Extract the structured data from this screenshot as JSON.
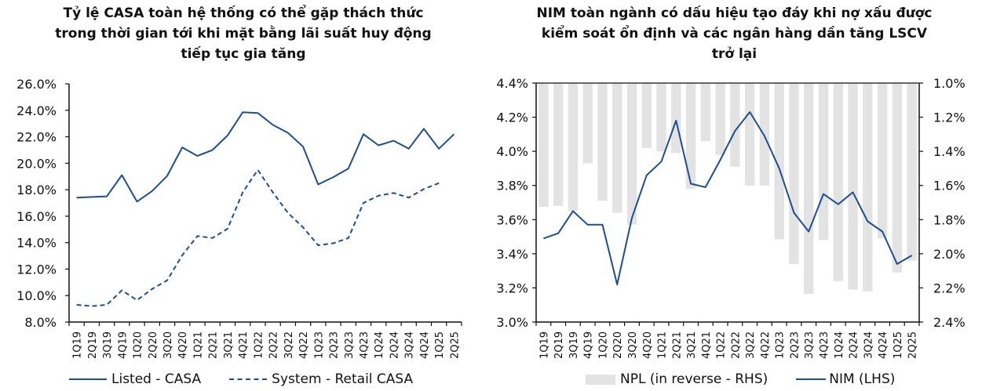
{
  "chart_data": [
    {
      "type": "line",
      "title": "Tỷ lệ CASA toàn hệ thống có thể gặp thách thức trong thời gian tới khi mặt bằng lãi suất huy động tiếp tục gia tăng",
      "title_lines": [
        "Tỷ lệ CASA toàn hệ thống có thể gặp thách thức",
        "trong thời gian tới khi mặt bằng lãi suất huy động",
        "tiếp tục gia tăng"
      ],
      "xlabel": "",
      "ylabel": "",
      "categories": [
        "1Q19",
        "2Q19",
        "3Q19",
        "4Q19",
        "1Q20",
        "2Q20",
        "3Q20",
        "4Q20",
        "1Q21",
        "2Q21",
        "3Q21",
        "4Q21",
        "1Q22",
        "2Q22",
        "3Q22",
        "4Q22",
        "1Q23",
        "2Q23",
        "3Q23",
        "4Q23",
        "1Q24",
        "2Q24",
        "3Q24",
        "4Q24",
        "1Q25",
        "2Q25"
      ],
      "ylim": [
        8.0,
        26.0
      ],
      "yticks": [
        "8.0%",
        "10.0%",
        "12.0%",
        "14.0%",
        "16.0%",
        "18.0%",
        "20.0%",
        "22.0%",
        "24.0%",
        "26.0%"
      ],
      "ytick_values": [
        8,
        10,
        12,
        14,
        16,
        18,
        20,
        22,
        24,
        26
      ],
      "grid": false,
      "legend_position": "bottom",
      "series": [
        {
          "name": "Listed - CASA",
          "style": "solid",
          "color": "#1f4e8c",
          "values": [
            17.4,
            17.45,
            17.5,
            19.1,
            17.1,
            17.9,
            19.05,
            21.2,
            20.55,
            21.0,
            22.1,
            23.85,
            23.8,
            22.9,
            22.3,
            21.25,
            18.4,
            18.95,
            19.6,
            22.2,
            21.35,
            21.7,
            21.1,
            22.6,
            21.1,
            22.2
          ]
        },
        {
          "name": "System - Retail CASA",
          "style": "dashed",
          "color": "#1f4e8c",
          "values": [
            9.3,
            9.2,
            9.3,
            10.4,
            9.65,
            10.5,
            11.15,
            13.05,
            14.5,
            14.35,
            15.05,
            17.8,
            19.5,
            17.8,
            16.25,
            15.15,
            13.8,
            13.95,
            14.35,
            17.0,
            17.55,
            17.75,
            17.4,
            18.05,
            18.5,
            null
          ]
        }
      ]
    },
    {
      "type": "bar",
      "title": "NIM toàn ngành có dấu hiệu tạo đáy khi nợ xấu được kiểm soát ổn định và các ngân hàng dần tăng LSCV trở lại",
      "title_lines": [
        "NIM toàn ngành có dấu hiệu tạo đáy khi nợ xấu được",
        "kiểm soát ổn định và các ngân hàng dần tăng LSCV",
        "trở lại"
      ],
      "xlabel": "",
      "categories": [
        "1Q19",
        "2Q19",
        "3Q19",
        "4Q19",
        "1Q20",
        "2Q20",
        "3Q20",
        "4Q20",
        "1Q21",
        "2Q21",
        "3Q21",
        "4Q21",
        "1Q22",
        "2Q22",
        "3Q22",
        "4Q22",
        "1Q23",
        "2Q23",
        "3Q23",
        "4Q23",
        "1Q24",
        "2Q24",
        "3Q24",
        "4Q24",
        "1Q25",
        "2Q25"
      ],
      "ylim_left": [
        3.0,
        4.4
      ],
      "yticks_left": [
        "3.0%",
        "3.2%",
        "3.4%",
        "3.6%",
        "3.8%",
        "4.0%",
        "4.2%",
        "4.4%"
      ],
      "ytick_values_left": [
        3.0,
        3.2,
        3.4,
        3.6,
        3.8,
        4.0,
        4.2,
        4.4
      ],
      "ylim_right_reversed": [
        1.0,
        2.4
      ],
      "yticks_right": [
        "1.0%",
        "1.2%",
        "1.4%",
        "1.6%",
        "1.8%",
        "2.0%",
        "2.2%",
        "2.4%"
      ],
      "ytick_values_right": [
        1.0,
        1.2,
        1.4,
        1.6,
        1.8,
        2.0,
        2.2,
        2.4
      ],
      "grid": false,
      "legend_position": "bottom",
      "series": [
        {
          "name": "NPL (in reverse - RHS)",
          "type": "bar",
          "axis": "right",
          "color": "#e3e3e3",
          "values": [
            1.725,
            1.72,
            1.75,
            1.47,
            1.69,
            1.76,
            1.83,
            1.38,
            1.4,
            1.41,
            1.62,
            1.34,
            1.42,
            1.49,
            1.6,
            1.6,
            1.915,
            2.06,
            2.235,
            1.92,
            2.16,
            2.21,
            2.22,
            1.91,
            2.11,
            2.04
          ]
        },
        {
          "name": "NIM (LHS)",
          "type": "line",
          "axis": "left",
          "color": "#1f4e8c",
          "values": [
            3.49,
            3.52,
            3.65,
            3.57,
            3.57,
            3.22,
            3.61,
            3.86,
            3.94,
            4.18,
            3.81,
            3.79,
            3.95,
            4.12,
            4.23,
            4.09,
            3.9,
            3.64,
            3.53,
            3.75,
            3.69,
            3.76,
            3.59,
            3.53,
            3.34,
            3.39
          ]
        }
      ]
    }
  ],
  "legend_left": {
    "listed": "Listed - CASA",
    "system": "System - Retail CASA"
  },
  "legend_right": {
    "npl": "NPL (in reverse - RHS)",
    "nim": "NIM (LHS)"
  },
  "colors": {
    "line": "#1f4e8c",
    "bar": "#e3e3e3",
    "axis": "#111111"
  }
}
